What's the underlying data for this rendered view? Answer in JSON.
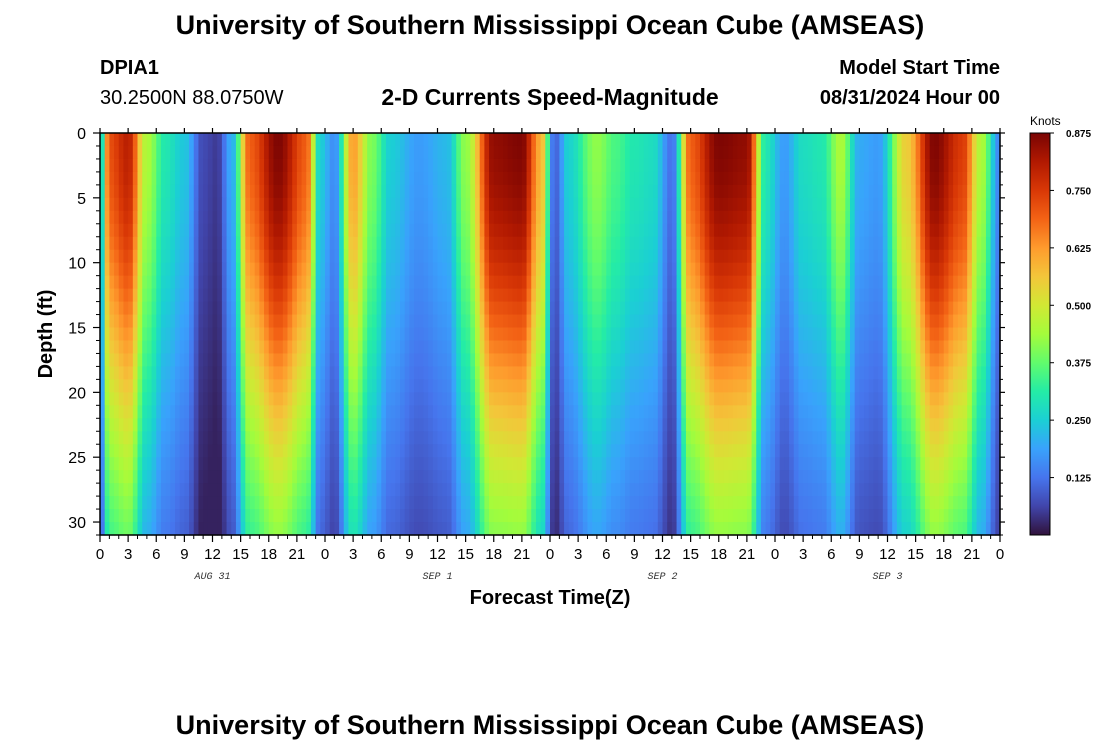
{
  "page": {
    "title": "University of Southern Mississippi Ocean Cube (AMSEAS)",
    "footer_title": "University of Southern Mississippi Ocean Cube (AMSEAS)",
    "station_id": "DPIA1",
    "coordinates": "30.2500N  88.0750W",
    "subtitle": "2-D Currents Speed-Magnitude",
    "model_start_label": "Model Start Time",
    "model_start_value": "08/31/2024 Hour 00"
  },
  "chart_data": {
    "type": "heatmap",
    "title": "2-D Currents Speed-Magnitude",
    "xlabel": "Forecast Time(Z)",
    "ylabel": "Depth (ft)",
    "xlim": [
      0,
      96
    ],
    "ylim": [
      31,
      0
    ],
    "x_tick_labels": [
      "0",
      "3",
      "6",
      "9",
      "12",
      "15",
      "18",
      "21",
      "0",
      "3",
      "6",
      "9",
      "12",
      "15",
      "18",
      "21",
      "0",
      "3",
      "6",
      "9",
      "12",
      "15",
      "18",
      "21",
      "0",
      "3",
      "6",
      "9",
      "12",
      "15",
      "18",
      "21",
      "0"
    ],
    "y_ticks": [
      0,
      5,
      10,
      15,
      20,
      25,
      30
    ],
    "y_tick_labels": [
      "0",
      "5",
      "10",
      "15",
      "20",
      "25",
      "30"
    ],
    "date_labels": [
      {
        "hour": 12,
        "label": "AUG 31"
      },
      {
        "hour": 36,
        "label": "SEP 1"
      },
      {
        "hour": 60,
        "label": "SEP 2"
      },
      {
        "hour": 84,
        "label": "SEP 3"
      }
    ],
    "colorbar": {
      "title": "Knots",
      "min": 0,
      "max": 0.875,
      "ticks": [
        "0.875",
        "0.750",
        "0.625",
        "0.500",
        "0.375",
        "0.250",
        "0.125"
      ],
      "tick_values": [
        0.875,
        0.75,
        0.625,
        0.5,
        0.375,
        0.25,
        0.125
      ],
      "colors": [
        "#30123b",
        "#4145ab",
        "#4675ed",
        "#39a2fc",
        "#1bcfd4",
        "#24eca6",
        "#61fc6c",
        "#a4fc3b",
        "#d1e834",
        "#f3c63a",
        "#fe9b2d",
        "#f36315",
        "#d93806",
        "#b11901",
        "#7a0403"
      ]
    },
    "time_profile_knots": [
      {
        "hour": 0,
        "value": 0.22
      },
      {
        "hour": 1,
        "value": 0.72
      },
      {
        "hour": 3,
        "value": 0.8
      },
      {
        "hour": 5,
        "value": 0.45
      },
      {
        "hour": 7,
        "value": 0.3
      },
      {
        "hour": 9,
        "value": 0.24
      },
      {
        "hour": 11,
        "value": 0.07
      },
      {
        "hour": 12.5,
        "value": 0.05
      },
      {
        "hour": 14,
        "value": 0.2
      },
      {
        "hour": 16,
        "value": 0.7
      },
      {
        "hour": 19,
        "value": 0.87
      },
      {
        "hour": 22,
        "value": 0.7
      },
      {
        "hour": 23.5,
        "value": 0.25
      },
      {
        "hour": 25,
        "value": 0.16
      },
      {
        "hour": 27,
        "value": 0.62
      },
      {
        "hour": 29,
        "value": 0.4
      },
      {
        "hour": 31,
        "value": 0.25
      },
      {
        "hour": 34,
        "value": 0.18
      },
      {
        "hour": 37,
        "value": 0.22
      },
      {
        "hour": 39,
        "value": 0.42
      },
      {
        "hour": 42,
        "value": 0.85
      },
      {
        "hour": 45,
        "value": 0.87
      },
      {
        "hour": 47,
        "value": 0.6
      },
      {
        "hour": 48.5,
        "value": 0.1
      },
      {
        "hour": 50,
        "value": 0.26
      },
      {
        "hour": 53,
        "value": 0.42
      },
      {
        "hour": 55,
        "value": 0.35
      },
      {
        "hour": 57,
        "value": 0.3
      },
      {
        "hour": 59,
        "value": 0.28
      },
      {
        "hour": 61,
        "value": 0.12
      },
      {
        "hour": 63,
        "value": 0.7
      },
      {
        "hour": 66,
        "value": 0.87
      },
      {
        "hour": 69,
        "value": 0.85
      },
      {
        "hour": 71,
        "value": 0.3
      },
      {
        "hour": 73,
        "value": 0.18
      },
      {
        "hour": 75,
        "value": 0.28
      },
      {
        "hour": 77,
        "value": 0.3
      },
      {
        "hour": 79,
        "value": 0.45
      },
      {
        "hour": 81,
        "value": 0.2
      },
      {
        "hour": 83,
        "value": 0.18
      },
      {
        "hour": 86,
        "value": 0.55
      },
      {
        "hour": 89,
        "value": 0.87
      },
      {
        "hour": 92,
        "value": 0.75
      },
      {
        "hour": 94,
        "value": 0.45
      },
      {
        "hour": 96,
        "value": 0.15
      }
    ],
    "depth_decay_scale_ft": 26
  }
}
